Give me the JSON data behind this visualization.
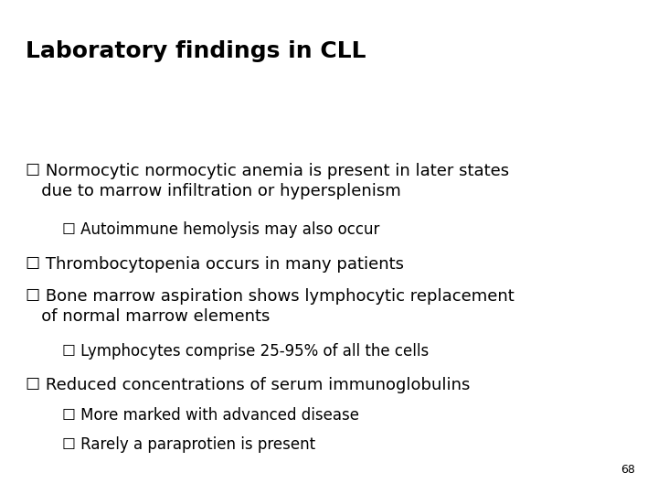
{
  "title": "Laboratory findings in CLL",
  "background_color": "#ffffff",
  "title_fontsize": 18,
  "title_fontweight": "bold",
  "page_number": "68",
  "text_color": "#000000",
  "bullet1_fontsize": 13,
  "bullet2_fontsize": 12,
  "page_number_fontsize": 9,
  "lines": [
    {
      "indent": 1,
      "text": " Normocytic normocytic anemia is present in later states",
      "cont": "   due to marrow infiltration or hypersplenism"
    },
    {
      "indent": 2,
      "text": "Autoimmune hemolysis may also occur",
      "cont": null
    },
    {
      "indent": 1,
      "text": " Thrombocytopenia occurs in many patients",
      "cont": null
    },
    {
      "indent": 1,
      "text": " Bone marrow aspiration shows lymphocytic replacement",
      "cont": "   of normal marrow elements"
    },
    {
      "indent": 2,
      "text": "Lymphocytes comprise 25-95% of all the cells",
      "cont": null
    },
    {
      "indent": 1,
      "text": " Reduced concentrations of serum immunoglobulins",
      "cont": null
    },
    {
      "indent": 2,
      "text": "More marked with advanced disease",
      "cont": null
    },
    {
      "indent": 2,
      "text": "Rarely a paraprotien is present",
      "cont": null
    }
  ]
}
